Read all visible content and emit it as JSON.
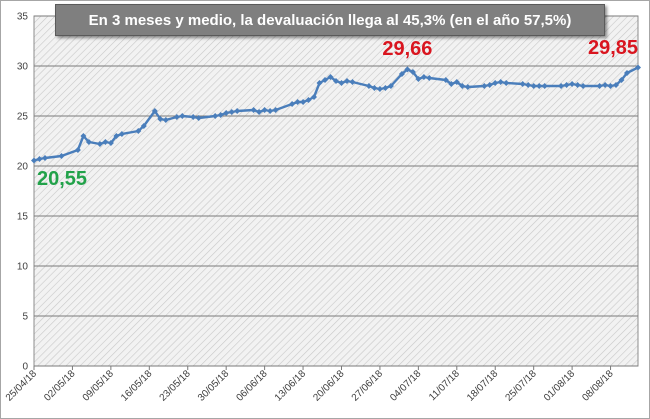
{
  "chart_data": {
    "type": "line",
    "title": "En 3 meses y medio, la devaluación llega al 45,3% (en el año 57,5%)",
    "xlabel": "",
    "ylabel": "",
    "ylim": [
      0,
      35
    ],
    "y_ticks": [
      "0",
      "5",
      "10",
      "15",
      "20",
      "25",
      "30",
      "35"
    ],
    "x_range": [
      "2018-04-25",
      "2018-08-13"
    ],
    "x_tick_labels": [
      "25/04/18",
      "02/05/18",
      "09/05/18",
      "16/05/18",
      "23/05/18",
      "30/05/18",
      "06/06/18",
      "13/06/18",
      "20/06/18",
      "27/06/18",
      "04/07/18",
      "11/07/18",
      "18/07/18",
      "25/07/18",
      "01/08/18",
      "08/08/18"
    ],
    "grid": true,
    "legend": "none",
    "series": [
      {
        "color": "#4a7ebb",
        "points": [
          [
            "2018-04-25",
            20.55
          ],
          [
            "2018-04-26",
            20.7
          ],
          [
            "2018-04-27",
            20.8
          ],
          [
            "2018-04-30",
            21.0
          ],
          [
            "2018-05-03",
            21.6
          ],
          [
            "2018-05-04",
            23.0
          ],
          [
            "2018-05-05",
            22.4
          ],
          [
            "2018-05-07",
            22.2
          ],
          [
            "2018-05-08",
            22.4
          ],
          [
            "2018-05-09",
            22.3
          ],
          [
            "2018-05-10",
            23.0
          ],
          [
            "2018-05-11",
            23.2
          ],
          [
            "2018-05-14",
            23.5
          ],
          [
            "2018-05-15",
            24.0
          ],
          [
            "2018-05-17",
            25.5
          ],
          [
            "2018-05-18",
            24.7
          ],
          [
            "2018-05-19",
            24.6
          ],
          [
            "2018-05-21",
            24.9
          ],
          [
            "2018-05-22",
            25.0
          ],
          [
            "2018-05-24",
            24.9
          ],
          [
            "2018-05-25",
            24.8
          ],
          [
            "2018-05-28",
            25.0
          ],
          [
            "2018-05-29",
            25.1
          ],
          [
            "2018-05-30",
            25.3
          ],
          [
            "2018-05-31",
            25.4
          ],
          [
            "2018-06-01",
            25.5
          ],
          [
            "2018-06-04",
            25.6
          ],
          [
            "2018-06-05",
            25.4
          ],
          [
            "2018-06-06",
            25.6
          ],
          [
            "2018-06-07",
            25.5
          ],
          [
            "2018-06-08",
            25.6
          ],
          [
            "2018-06-11",
            26.2
          ],
          [
            "2018-06-12",
            26.4
          ],
          [
            "2018-06-13",
            26.4
          ],
          [
            "2018-06-14",
            26.6
          ],
          [
            "2018-06-15",
            26.9
          ],
          [
            "2018-06-16",
            28.3
          ],
          [
            "2018-06-17",
            28.6
          ],
          [
            "2018-06-18",
            28.9
          ],
          [
            "2018-06-19",
            28.5
          ],
          [
            "2018-06-20",
            28.3
          ],
          [
            "2018-06-21",
            28.5
          ],
          [
            "2018-06-22",
            28.4
          ],
          [
            "2018-06-25",
            28.0
          ],
          [
            "2018-06-26",
            27.8
          ],
          [
            "2018-06-27",
            27.7
          ],
          [
            "2018-06-28",
            27.8
          ],
          [
            "2018-06-29",
            28.0
          ],
          [
            "2018-07-01",
            29.2
          ],
          [
            "2018-07-02",
            29.66
          ],
          [
            "2018-07-03",
            29.4
          ],
          [
            "2018-07-04",
            28.7
          ],
          [
            "2018-07-05",
            28.9
          ],
          [
            "2018-07-06",
            28.8
          ],
          [
            "2018-07-09",
            28.6
          ],
          [
            "2018-07-10",
            28.2
          ],
          [
            "2018-07-11",
            28.4
          ],
          [
            "2018-07-12",
            28.0
          ],
          [
            "2018-07-13",
            27.9
          ],
          [
            "2018-07-16",
            28.0
          ],
          [
            "2018-07-17",
            28.1
          ],
          [
            "2018-07-18",
            28.3
          ],
          [
            "2018-07-19",
            28.4
          ],
          [
            "2018-07-20",
            28.3
          ],
          [
            "2018-07-23",
            28.2
          ],
          [
            "2018-07-24",
            28.1
          ],
          [
            "2018-07-25",
            28.0
          ],
          [
            "2018-07-26",
            28.0
          ],
          [
            "2018-07-27",
            28.0
          ],
          [
            "2018-07-30",
            28.0
          ],
          [
            "2018-07-31",
            28.1
          ],
          [
            "2018-08-01",
            28.2
          ],
          [
            "2018-08-02",
            28.1
          ],
          [
            "2018-08-03",
            28.0
          ],
          [
            "2018-08-06",
            28.0
          ],
          [
            "2018-08-07",
            28.1
          ],
          [
            "2018-08-08",
            28.0
          ],
          [
            "2018-08-09",
            28.1
          ],
          [
            "2018-08-10",
            28.6
          ],
          [
            "2018-08-11",
            29.3
          ],
          [
            "2018-08-13",
            29.85
          ]
        ]
      }
    ],
    "annotations": [
      {
        "text": "20,55",
        "x": "2018-04-25",
        "y": 20.55,
        "color": "#22a24a"
      },
      {
        "text": "29,66",
        "x": "2018-07-02",
        "y": 29.66,
        "color": "#d9151f"
      },
      {
        "text": "29,85",
        "x": "2018-08-13",
        "y": 29.85,
        "color": "#d9151f"
      }
    ]
  }
}
